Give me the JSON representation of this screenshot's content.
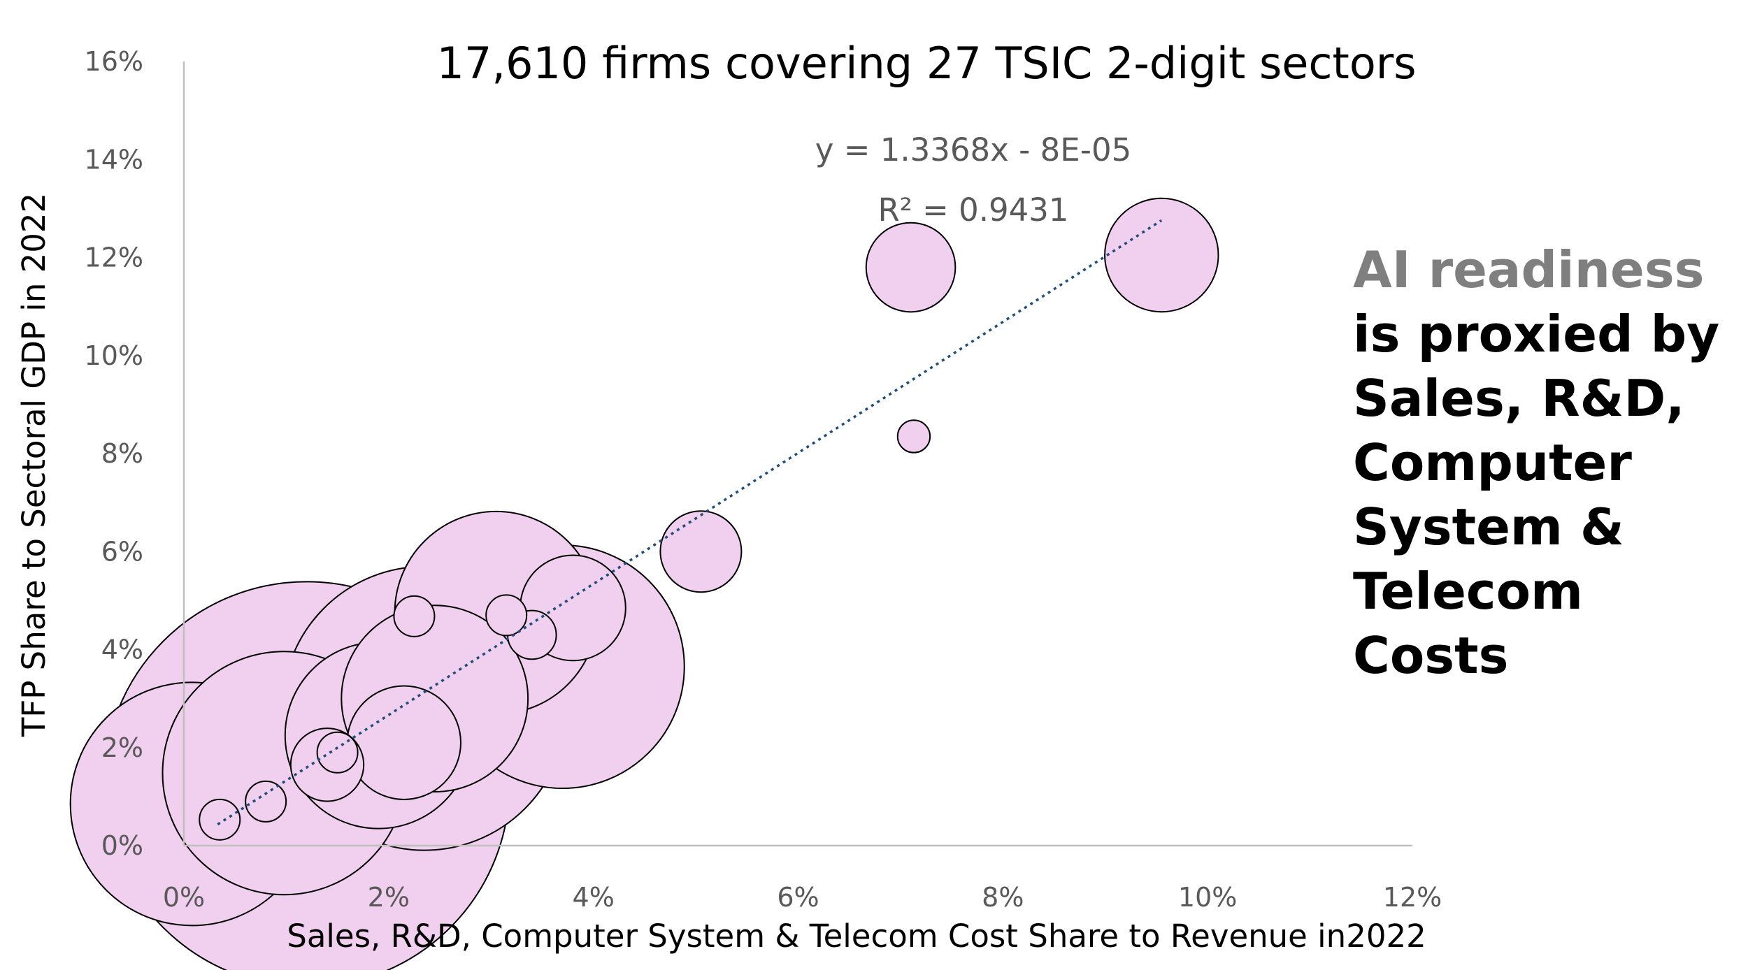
{
  "colors": {
    "bubble_fill": "#f1cfee",
    "bubble_stroke": "#000000",
    "trendline": "#1f4e79",
    "axis": "#bfbfbf",
    "tick_text": "#595959",
    "highlight_text": "#7f7f7f"
  },
  "annotation": {
    "highlight": "AI readiness",
    "rest": "is proxied by Sales, R&D, Computer System & Telecom Costs"
  },
  "chart_data": {
    "type": "scatter",
    "variant": "bubble",
    "title": "17,610 firms covering 27 TSIC 2-digit sectors",
    "xlabel": "Sales, R&D, Computer System & Telecom Cost Share to Revenue in2022",
    "ylabel": "TFP Share to Sectoral GDP in 2022",
    "xlim": [
      0,
      0.12
    ],
    "ylim": [
      0,
      0.16
    ],
    "x_ticks": [
      0,
      0.02,
      0.04,
      0.06,
      0.08,
      0.1,
      0.12
    ],
    "x_tick_labels": [
      "0%",
      "2%",
      "4%",
      "6%",
      "8%",
      "10%",
      "12%"
    ],
    "y_ticks": [
      0,
      0.02,
      0.04,
      0.06,
      0.08,
      0.1,
      0.12,
      0.14,
      0.16
    ],
    "y_tick_labels": [
      "0%",
      "2%",
      "4%",
      "6%",
      "8%",
      "10%",
      "12%",
      "14%",
      "16%"
    ],
    "grid": false,
    "legend": "none",
    "trendline": {
      "equation": "y = 1.3368x - 8E-05",
      "r_squared": "R² = 0.9431",
      "slope": 1.3368,
      "intercept": -8e-05,
      "x_range": [
        0.0033,
        0.0955
      ],
      "style": "dotted"
    },
    "points": [
      {
        "x": 0.012,
        "y": 0.0125,
        "size": 50
      },
      {
        "x": 0.0008,
        "y": 0.0085,
        "size": 30
      },
      {
        "x": 0.0098,
        "y": 0.0148,
        "size": 30
      },
      {
        "x": 0.0235,
        "y": 0.028,
        "size": 35
      },
      {
        "x": 0.019,
        "y": 0.0225,
        "size": 23
      },
      {
        "x": 0.037,
        "y": 0.0365,
        "size": 30
      },
      {
        "x": 0.0245,
        "y": 0.03,
        "size": 23
      },
      {
        "x": 0.0305,
        "y": 0.0475,
        "size": 25
      },
      {
        "x": 0.0215,
        "y": 0.021,
        "size": 14
      },
      {
        "x": 0.038,
        "y": 0.0485,
        "size": 13
      },
      {
        "x": 0.0505,
        "y": 0.06,
        "size": 10
      },
      {
        "x": 0.0955,
        "y": 0.1205,
        "size": 14
      },
      {
        "x": 0.071,
        "y": 0.118,
        "size": 11
      },
      {
        "x": 0.014,
        "y": 0.0165,
        "size": 9
      },
      {
        "x": 0.015,
        "y": 0.019,
        "size": 5
      },
      {
        "x": 0.034,
        "y": 0.043,
        "size": 6
      },
      {
        "x": 0.0315,
        "y": 0.047,
        "size": 5
      },
      {
        "x": 0.0225,
        "y": 0.0468,
        "size": 5
      },
      {
        "x": 0.0713,
        "y": 0.0835,
        "size": 4
      },
      {
        "x": 0.008,
        "y": 0.009,
        "size": 5
      },
      {
        "x": 0.0035,
        "y": 0.0053,
        "size": 5
      }
    ]
  }
}
